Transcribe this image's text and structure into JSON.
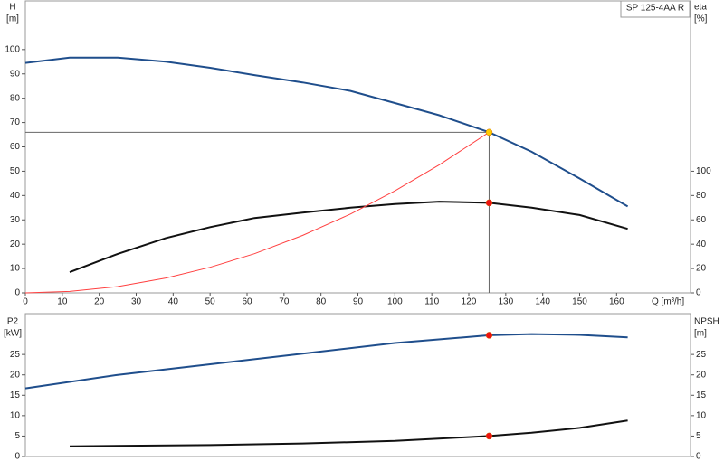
{
  "chart_data": [
    {
      "type": "line",
      "y_label": "H",
      "y_unit": "[m]",
      "y2_label": "eta",
      "y2_unit": "[%]",
      "x_label": "Q [m³/h]",
      "title": "SP 125-4AA R",
      "xlim": [
        0,
        180
      ],
      "xticks": [
        0,
        10,
        20,
        30,
        40,
        50,
        60,
        70,
        80,
        90,
        100,
        110,
        120,
        130,
        140,
        150,
        160
      ],
      "ylim": [
        0,
        120
      ],
      "yticks": [
        0,
        10,
        20,
        30,
        40,
        50,
        60,
        70,
        80,
        90,
        100
      ],
      "y2lim": [
        0,
        240
      ],
      "y2ticks": [
        0,
        20,
        40,
        60,
        80,
        100
      ],
      "series": [
        {
          "color": "#1f4e8c",
          "x": [
            0,
            12,
            25,
            38,
            50,
            62,
            75,
            88,
            100,
            112,
            125.5,
            137,
            150,
            163
          ],
          "values": [
            94.5,
            96.7,
            96.7,
            95,
            92.5,
            89.5,
            86.5,
            83,
            78,
            73,
            66,
            58,
            47,
            35.5
          ]
        },
        {
          "color": "#111111",
          "axis": "y2",
          "x": [
            12,
            25,
            38,
            50,
            62,
            75,
            88,
            100,
            112,
            125.5,
            137,
            150,
            163
          ],
          "values": [
            17,
            32,
            45,
            54,
            61.5,
            66,
            70,
            73,
            75,
            74,
            70,
            64,
            52.6
          ]
        },
        {
          "color": "#ff4040",
          "x": [
            0,
            12,
            25,
            38,
            50,
            62,
            75,
            88,
            100,
            112,
            125.5
          ],
          "values": [
            0,
            0.6,
            2.6,
            6.1,
            10.5,
            16.1,
            23.6,
            32.4,
            41.9,
            52.6,
            66
          ]
        }
      ],
      "markers": [
        {
          "x": 125.5,
          "y": 66,
          "color": "#ffcc00",
          "guides": true
        },
        {
          "x": 125.5,
          "y": 74,
          "color": "#ee1111",
          "axis": "y2"
        }
      ]
    },
    {
      "type": "line",
      "y_label": "P2",
      "y_unit": "[kW]",
      "y2_label": "NPSH",
      "y2_unit": "[m]",
      "xlim": [
        0,
        180
      ],
      "ylim": [
        0,
        35
      ],
      "yticks": [
        0,
        5,
        10,
        15,
        20,
        25
      ],
      "y2lim": [
        0,
        35
      ],
      "y2ticks": [
        0,
        5,
        10,
        15,
        20,
        25
      ],
      "series": [
        {
          "color": "#1f4e8c",
          "x": [
            0,
            25,
            50,
            75,
            100,
            125.5,
            137,
            150,
            163
          ],
          "values": [
            16.7,
            20,
            22.6,
            25.2,
            27.8,
            29.7,
            30,
            29.8,
            29.2
          ]
        },
        {
          "color": "#111111",
          "axis": "y2",
          "x": [
            12,
            50,
            75,
            100,
            125.5,
            137,
            150,
            163
          ],
          "values": [
            2.5,
            2.8,
            3.2,
            3.8,
            5,
            5.8,
            7,
            8.8
          ]
        }
      ],
      "markers": [
        {
          "x": 125.5,
          "y": 29.7,
          "color": "#ee1111"
        },
        {
          "x": 125.5,
          "y": 5,
          "color": "#ee1111",
          "axis": "y2"
        }
      ]
    }
  ]
}
